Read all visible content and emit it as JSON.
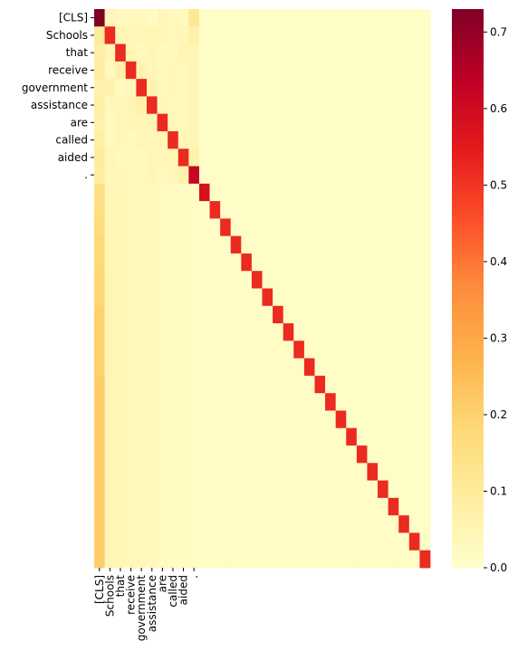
{
  "chart_data": {
    "type": "heatmap",
    "title": "",
    "xlabel": "",
    "ylabel": "",
    "n": 32,
    "token_labels": [
      "[CLS]",
      "Schools",
      "that",
      "receive",
      "government",
      "assistance",
      "are",
      "called",
      "aided",
      "."
    ],
    "colormap": "YlOrRd",
    "vmin": 0.0,
    "vmax": 0.73,
    "colorbar_ticks": [
      "0.0",
      "0.1",
      "0.2",
      "0.3",
      "0.4",
      "0.5",
      "0.6",
      "0.7"
    ],
    "diagonal_values": [
      0.73,
      0.52,
      0.52,
      0.52,
      0.52,
      0.52,
      0.52,
      0.52,
      0.52,
      0.62,
      0.58,
      0.52,
      0.52,
      0.52,
      0.52,
      0.52,
      0.52,
      0.52,
      0.52,
      0.52,
      0.52,
      0.52,
      0.52,
      0.52,
      0.52,
      0.52,
      0.52,
      0.52,
      0.52,
      0.52,
      0.52,
      0.52
    ],
    "cls_column_values": [
      0.73,
      0.1,
      0.08,
      0.09,
      0.07,
      0.08,
      0.07,
      0.08,
      0.1,
      0.09,
      0.15,
      0.16,
      0.17,
      0.18,
      0.18,
      0.19,
      0.19,
      0.2,
      0.2,
      0.2,
      0.2,
      0.21,
      0.21,
      0.21,
      0.21,
      0.21,
      0.21,
      0.21,
      0.21,
      0.21,
      0.21,
      0.21
    ],
    "token_block": [
      [
        0.73,
        0.04,
        0.03,
        0.03,
        0.03,
        0.02,
        0.04,
        0.03,
        0.03,
        0.12
      ],
      [
        0.1,
        0.52,
        0.05,
        0.04,
        0.04,
        0.05,
        0.04,
        0.03,
        0.04,
        0.07
      ],
      [
        0.08,
        0.05,
        0.52,
        0.05,
        0.03,
        0.04,
        0.03,
        0.03,
        0.05,
        0.05
      ],
      [
        0.09,
        0.03,
        0.07,
        0.52,
        0.06,
        0.04,
        0.03,
        0.04,
        0.03,
        0.05
      ],
      [
        0.07,
        0.06,
        0.03,
        0.04,
        0.52,
        0.06,
        0.03,
        0.04,
        0.03,
        0.05
      ],
      [
        0.08,
        0.04,
        0.04,
        0.05,
        0.07,
        0.52,
        0.04,
        0.03,
        0.03,
        0.05
      ],
      [
        0.07,
        0.03,
        0.04,
        0.04,
        0.05,
        0.05,
        0.52,
        0.04,
        0.03,
        0.05
      ],
      [
        0.08,
        0.03,
        0.04,
        0.03,
        0.04,
        0.04,
        0.05,
        0.52,
        0.04,
        0.05
      ],
      [
        0.1,
        0.04,
        0.03,
        0.03,
        0.03,
        0.04,
        0.04,
        0.05,
        0.52,
        0.07
      ],
      [
        0.09,
        0.04,
        0.04,
        0.03,
        0.03,
        0.04,
        0.03,
        0.04,
        0.06,
        0.62
      ]
    ],
    "far_columns_value": 0.01,
    "colors": {
      "background": "#ffffff",
      "text": "#000000"
    }
  }
}
